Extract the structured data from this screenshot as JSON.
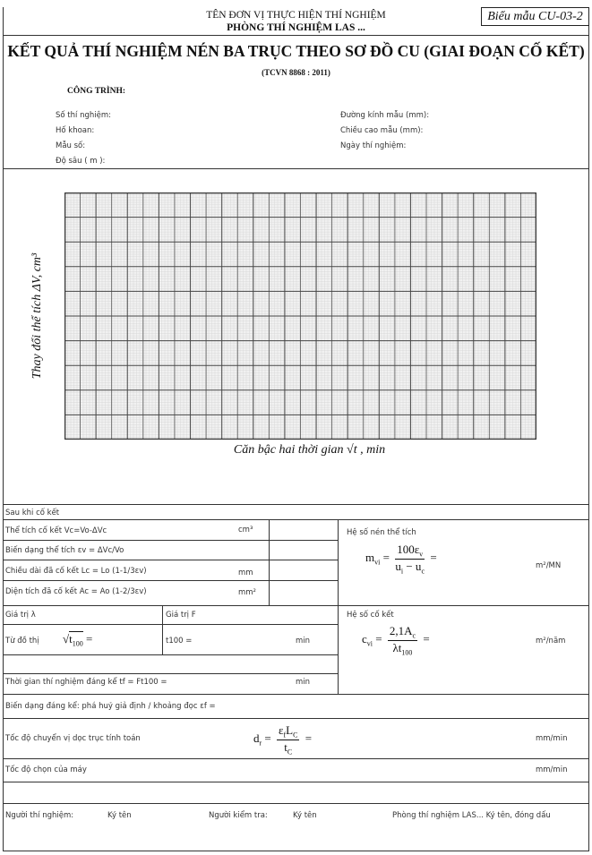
{
  "header": {
    "org": "TÊN ĐƠN VỊ THỰC HIỆN THÍ NGHIỆM",
    "lab": "PHÒNG THÍ NGHIỆM LAS ...",
    "form_code": "Biểu mẫu CU-03-2"
  },
  "title": "KẾT QUẢ THÍ NGHIỆM NÉN BA TRỤC THEO SƠ ĐỒ CU (GIAI ĐOẠN CỐ KẾT)",
  "standard": "(TCVN 8868 : 2011)",
  "project_label": "CÔNG TRÌNH:",
  "info_left": [
    "Số thí nghiệm:",
    "Hố khoan:",
    "Mẫu số:",
    "Độ sâu ( m ):"
  ],
  "info_right": [
    "Đường kính mẫu (mm):",
    "Chiều cao mẫu (mm):",
    "Ngày thí nghiệm:"
  ],
  "chart_data": {
    "type": "line",
    "ylabel": "Thay đổi thể tích ΔV, cm³",
    "xlabel": "Căn bậc hai thời gian √t , min",
    "grid": true,
    "series": []
  },
  "after": {
    "heading": "Sau khi cố kết",
    "rows": [
      {
        "label": "Thể tích cố kết Vc=Vo-ΔVc",
        "unit": "cm³"
      },
      {
        "label": "Biến dạng thể tích εv = ΔVc/Vo",
        "unit": ""
      },
      {
        "label": "Chiều dài đã cố kết Lc = Lo (1-1/3εv)",
        "unit": "mm"
      },
      {
        "label": "Diện tích đã cố kết Ac = Ao (1-2/3εv)",
        "unit": "mm²"
      }
    ],
    "mv_label": "Hệ số nén thể tích",
    "mv_unit": "m²/MN",
    "lambda_label": "Giá trị λ",
    "F_label": "Giá trị F",
    "from_graph": "Từ đồ thị",
    "t100_label": "t100 =",
    "t100_unit": "min",
    "cv_label": "Hệ số cố kết",
    "cv_unit": "m²/năm",
    "tf_label": "Thời gian thí nghiệm đáng kể tf = Ft100 =",
    "tf_unit": "min",
    "strain_label": "Biến dạng đáng kể: phá huỷ giả định / khoảng đọc εf =",
    "rate_label": "Tốc độ chuyển vị dọc trục tính toán",
    "rate_unit": "mm/min",
    "machine_label": "Tốc độ chọn của máy",
    "machine_unit": "mm/min"
  },
  "signatures": {
    "tester": "Người thí nghiệm:",
    "tester_sign": "Ký tên",
    "checker": "Người kiểm tra:",
    "checker_sign": "Ký tên",
    "lab": "Phòng thí nghiệm LAS... Ký tên, đóng dấu"
  }
}
